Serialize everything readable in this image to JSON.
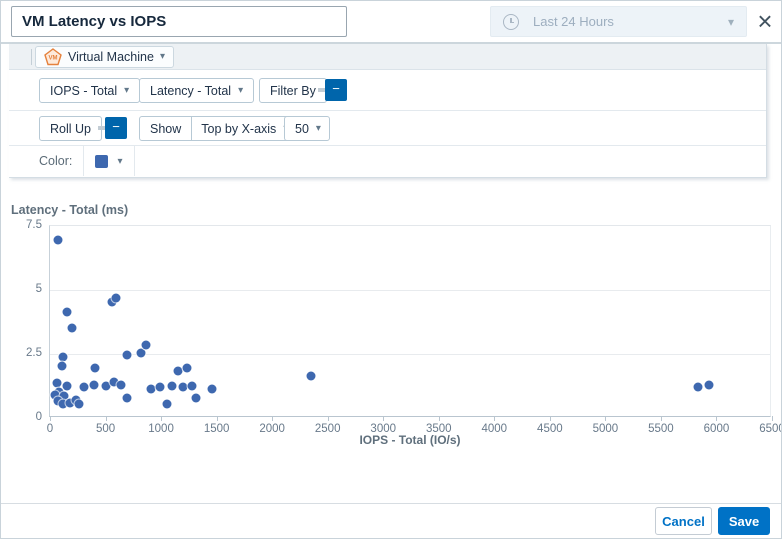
{
  "header": {
    "title_value": "VM Latency vs IOPS",
    "time_range_label": "Last 24 Hours"
  },
  "icons": {
    "caret": "▾",
    "close": "×",
    "toggle_minus": "−",
    "vm_badge": "VM"
  },
  "toolbar": {
    "object_type_label": "Virtual Machine",
    "x_metric_label": "IOPS - Total",
    "y_metric_label": "Latency - Total",
    "filter_by_label": "Filter By",
    "roll_up_label": "Roll Up",
    "show_label": "Show",
    "top_by_label": "Top by X-axis",
    "top_count_value": "50",
    "color_label": "Color:"
  },
  "colors": {
    "accent": "#0072c6",
    "toggle_blue": "#0065ab",
    "point_blue": "#3e68af",
    "swatch_blue": "#3e68af"
  },
  "chart_data": {
    "type": "scatter",
    "title": "",
    "xlabel": "IOPS - Total (IO/s)",
    "ylabel": "Latency - Total (ms)",
    "xlim": [
      0,
      6500
    ],
    "ylim": [
      0,
      7.5
    ],
    "x_ticks": [
      0,
      500,
      1000,
      1500,
      2000,
      2500,
      3000,
      3500,
      4000,
      4500,
      5000,
      5500,
      6000,
      6500
    ],
    "y_ticks": [
      0,
      2.5,
      5,
      7.5
    ],
    "grid": true,
    "legend": false,
    "point_color": "#3e68af",
    "points": [
      [
        75,
        6.95
      ],
      [
        155,
        4.15
      ],
      [
        555,
        4.55
      ],
      [
        590,
        4.7
      ],
      [
        200,
        3.5
      ],
      [
        120,
        2.4
      ],
      [
        105,
        2.05
      ],
      [
        405,
        1.95
      ],
      [
        690,
        2.45
      ],
      [
        820,
        2.55
      ],
      [
        860,
        2.85
      ],
      [
        1150,
        1.85
      ],
      [
        1230,
        1.95
      ],
      [
        65,
        1.35
      ],
      [
        155,
        1.25
      ],
      [
        80,
        1.0
      ],
      [
        45,
        0.9
      ],
      [
        125,
        0.85
      ],
      [
        70,
        0.65
      ],
      [
        115,
        0.55
      ],
      [
        180,
        0.6
      ],
      [
        230,
        0.7
      ],
      [
        260,
        0.55
      ],
      [
        310,
        1.2
      ],
      [
        395,
        1.3
      ],
      [
        500,
        1.25
      ],
      [
        575,
        1.4
      ],
      [
        635,
        1.3
      ],
      [
        695,
        0.8
      ],
      [
        905,
        1.15
      ],
      [
        990,
        1.2
      ],
      [
        1050,
        0.55
      ],
      [
        1095,
        1.25
      ],
      [
        1200,
        1.2
      ],
      [
        1275,
        1.25
      ],
      [
        1310,
        0.8
      ],
      [
        1460,
        1.15
      ],
      [
        2350,
        1.65
      ],
      [
        5830,
        1.2
      ],
      [
        5935,
        1.3
      ]
    ]
  },
  "footer": {
    "cancel_label": "Cancel",
    "save_label": "Save"
  }
}
